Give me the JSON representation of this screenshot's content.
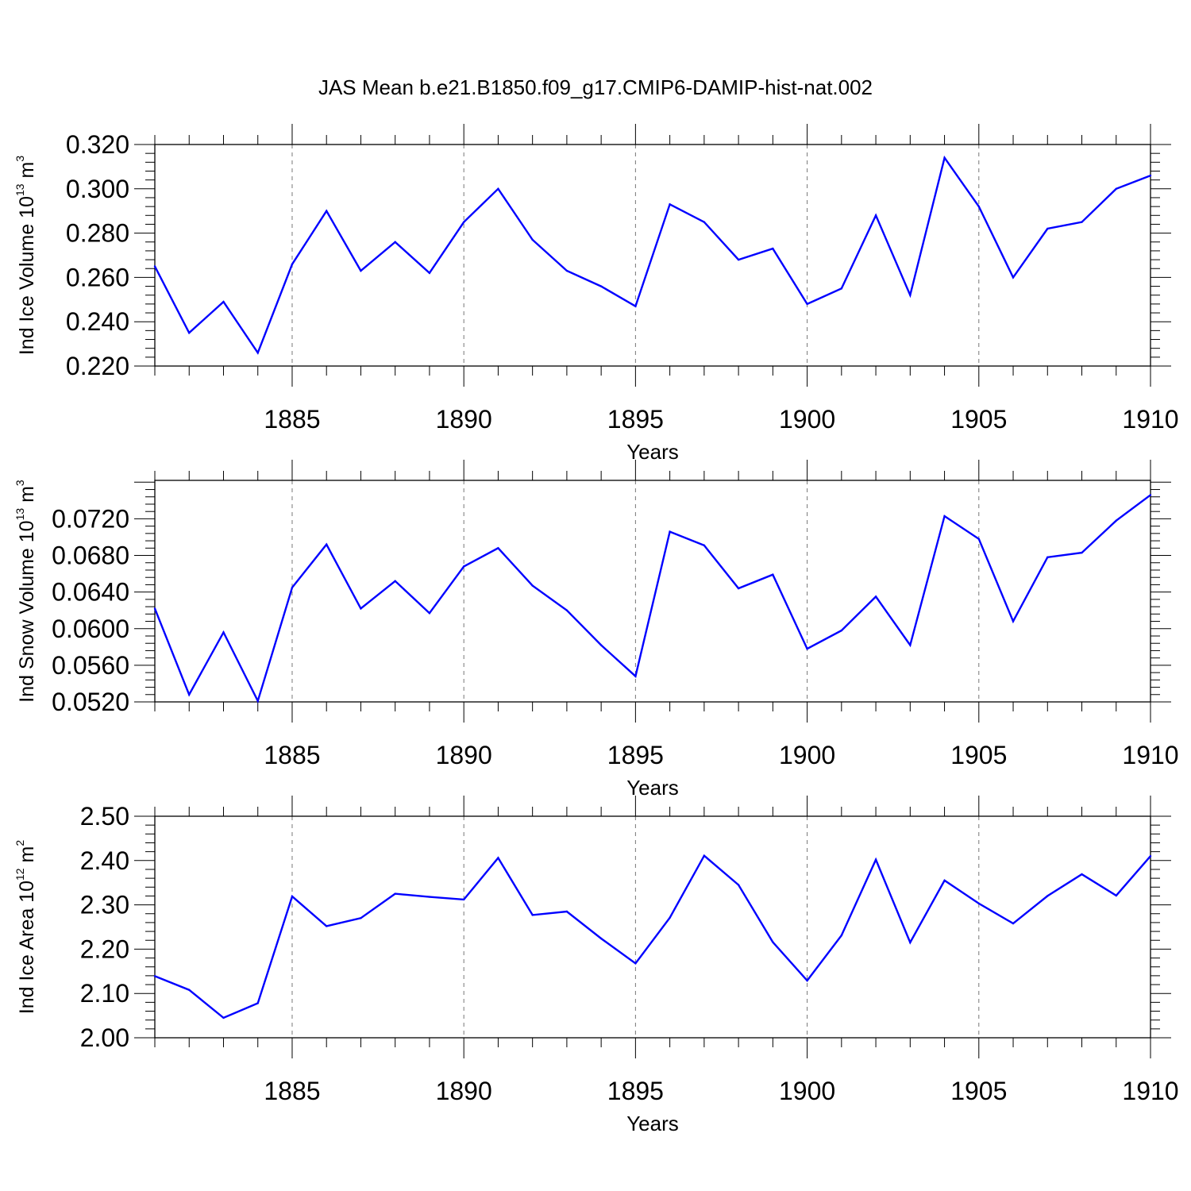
{
  "title": "JAS Mean b.e21.B1850.f09_g17.CMIP6-DAMIP-hist-nat.002",
  "colors": {
    "line": "#0000ff",
    "axis": "#000000",
    "grid": "#777777"
  },
  "chart_data": [
    {
      "type": "line",
      "xlabel": "Years",
      "ylabel": {
        "prefix": "Ind Ice Volume 10",
        "exponent": "13",
        "unit": " m",
        "unit_exponent": "3"
      },
      "xlim": [
        1881,
        1910
      ],
      "ylim": [
        0.22,
        0.32
      ],
      "x_ticks": [
        1885,
        1890,
        1895,
        1900,
        1905,
        1910
      ],
      "y_ticks": [
        "0.220",
        "0.240",
        "0.260",
        "0.280",
        "0.300",
        "0.320"
      ],
      "grid": "vertical dashed at x ticks",
      "x": [
        1881,
        1882,
        1883,
        1884,
        1885,
        1886,
        1887,
        1888,
        1889,
        1890,
        1891,
        1892,
        1893,
        1894,
        1895,
        1896,
        1897,
        1898,
        1899,
        1900,
        1901,
        1902,
        1903,
        1904,
        1905,
        1906,
        1907,
        1908,
        1909,
        1910
      ],
      "values": [
        0.265,
        0.235,
        0.249,
        0.226,
        0.266,
        0.29,
        0.263,
        0.276,
        0.262,
        0.285,
        0.3,
        0.277,
        0.263,
        0.256,
        0.247,
        0.293,
        0.285,
        0.268,
        0.273,
        0.248,
        0.255,
        0.288,
        0.252,
        0.314,
        0.292,
        0.26,
        0.282,
        0.285,
        0.3,
        0.306
      ]
    },
    {
      "type": "line",
      "xlabel": "Years",
      "ylabel": {
        "prefix": "Ind Snow Volume 10",
        "exponent": "13",
        "unit": " m",
        "unit_exponent": "3"
      },
      "xlim": [
        1881,
        1910
      ],
      "ylim": [
        0.052,
        0.0762
      ],
      "x_ticks": [
        1885,
        1890,
        1895,
        1900,
        1905,
        1910
      ],
      "y_ticks": [
        "0.0520",
        "0.0560",
        "0.0600",
        "0.0640",
        "0.0680",
        "0.0720"
      ],
      "grid": "vertical dashed at x ticks",
      "x": [
        1881,
        1882,
        1883,
        1884,
        1885,
        1886,
        1887,
        1888,
        1889,
        1890,
        1891,
        1892,
        1893,
        1894,
        1895,
        1896,
        1897,
        1898,
        1899,
        1900,
        1901,
        1902,
        1903,
        1904,
        1905,
        1906,
        1907,
        1908,
        1909,
        1910
      ],
      "values": [
        0.0622,
        0.0528,
        0.0596,
        0.0521,
        0.0645,
        0.0692,
        0.0622,
        0.0652,
        0.0617,
        0.0668,
        0.0688,
        0.0647,
        0.062,
        0.0582,
        0.0548,
        0.0706,
        0.0691,
        0.0644,
        0.0659,
        0.0578,
        0.0598,
        0.0635,
        0.0582,
        0.0723,
        0.0698,
        0.0608,
        0.0678,
        0.0683,
        0.0718,
        0.0746
      ]
    },
    {
      "type": "line",
      "xlabel": "Years",
      "ylabel": {
        "prefix": "Ind Ice Area 10",
        "exponent": "12",
        "unit": " m",
        "unit_exponent": "2"
      },
      "xlim": [
        1881,
        1910
      ],
      "ylim": [
        2.0,
        2.5
      ],
      "x_ticks": [
        1885,
        1890,
        1895,
        1900,
        1905,
        1910
      ],
      "y_ticks": [
        "2.00",
        "2.10",
        "2.20",
        "2.30",
        "2.40",
        "2.50"
      ],
      "grid": "vertical dashed at x ticks",
      "x": [
        1881,
        1882,
        1883,
        1884,
        1885,
        1886,
        1887,
        1888,
        1889,
        1890,
        1891,
        1892,
        1893,
        1894,
        1895,
        1896,
        1897,
        1898,
        1899,
        1900,
        1901,
        1902,
        1903,
        1904,
        1905,
        1906,
        1907,
        1908,
        1909,
        1910
      ],
      "values": [
        2.139,
        2.108,
        2.045,
        2.078,
        2.319,
        2.252,
        2.27,
        2.325,
        2.318,
        2.312,
        2.406,
        2.277,
        2.285,
        2.224,
        2.168,
        2.271,
        2.411,
        2.345,
        2.216,
        2.129,
        2.231,
        2.402,
        2.215,
        2.355,
        2.303,
        2.258,
        2.32,
        2.369,
        2.321,
        2.41
      ]
    }
  ]
}
